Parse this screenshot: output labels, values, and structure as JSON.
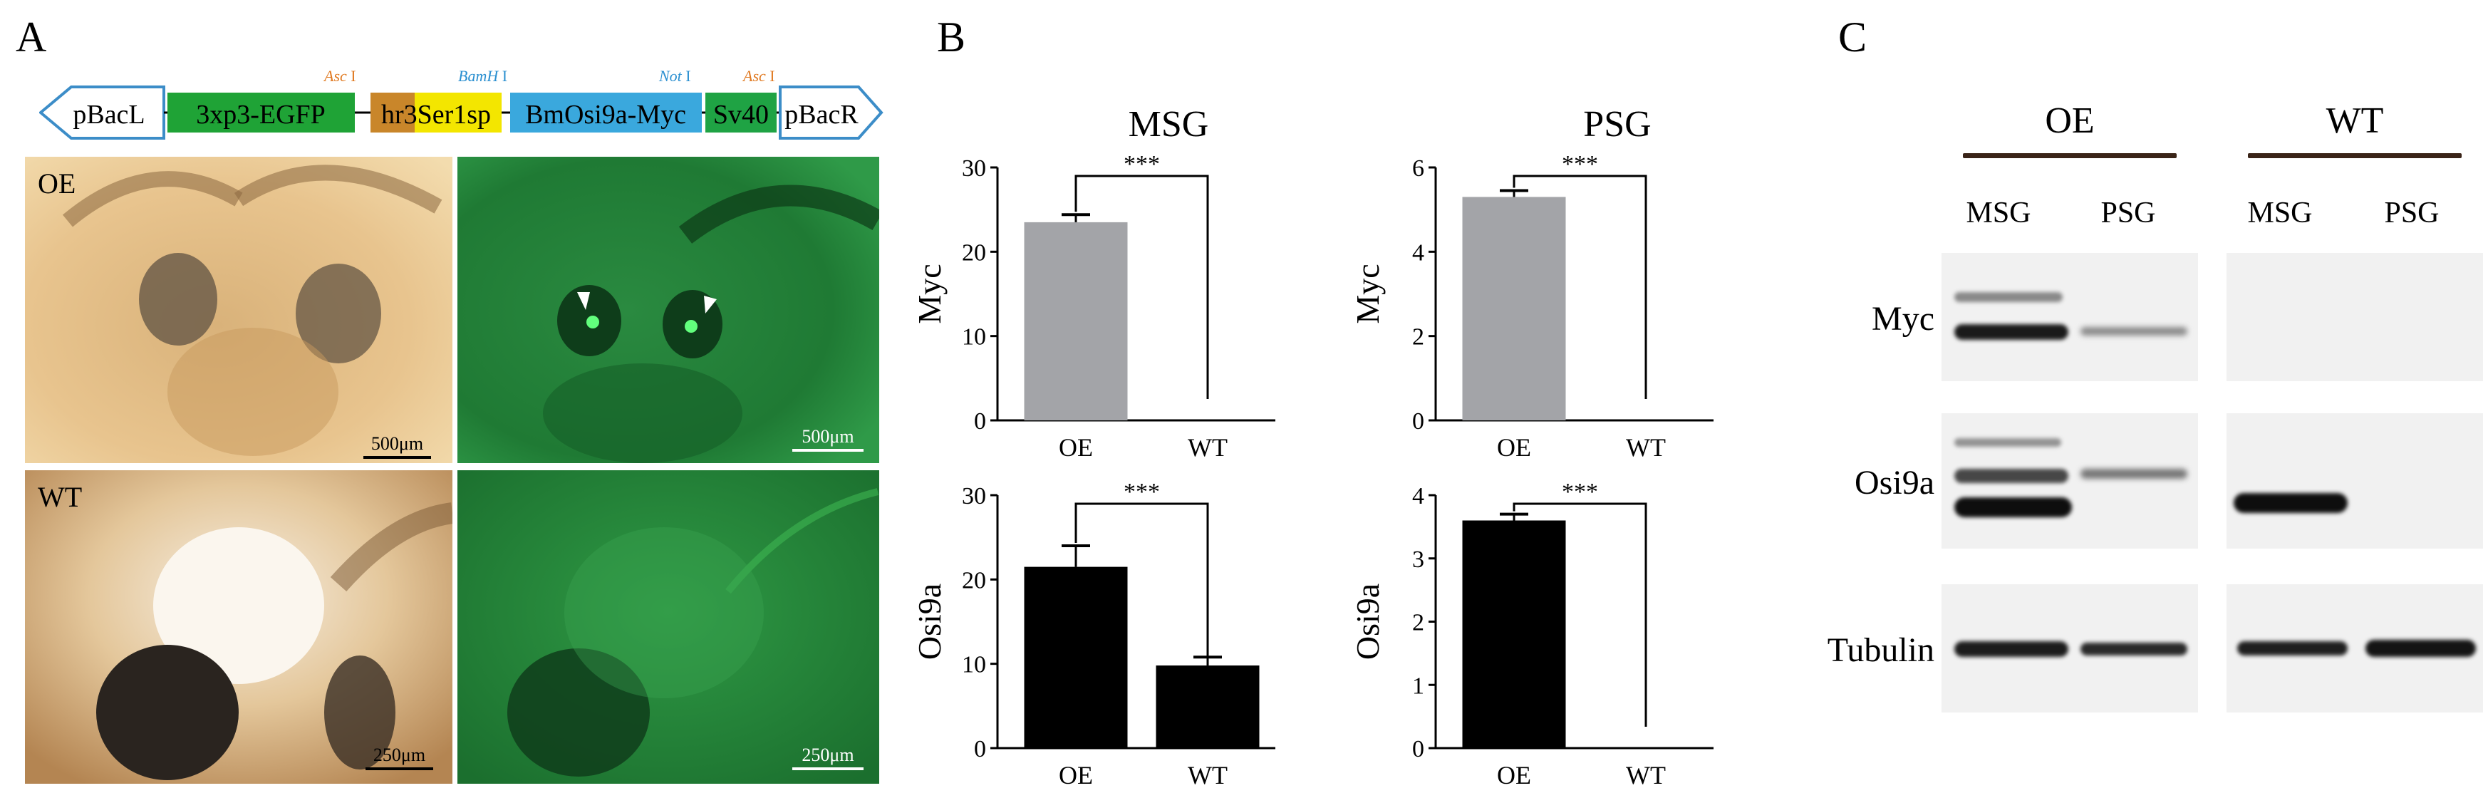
{
  "panels": {
    "a": "A",
    "b": "B",
    "c": "C"
  },
  "construct": {
    "segments": [
      "pBacL",
      "3xp3-EGFP",
      "hr3Ser1sp",
      "BmOsi9a-Myc",
      "Sv40",
      "pBacR"
    ],
    "sites": [
      {
        "enzyme": "Asc",
        "num": "I"
      },
      {
        "enzyme": "BamH",
        "num": "I"
      },
      {
        "enzyme": "Not",
        "num": "I"
      },
      {
        "enzyme": "Asc",
        "num": "I"
      }
    ],
    "colors": {
      "pBacL": "#ffffff",
      "egfp": "#1fa336",
      "hr3": "#c9862a",
      "ser1": "#f3e600",
      "osi": "#3aa8dd",
      "sv40": "#1fa344",
      "arrowStroke": "#3c8dc8",
      "enzymeOrange": "#e07a22",
      "enzymeBlue": "#2a8fd0"
    }
  },
  "photos": {
    "oe_label": "OE",
    "wt_label": "WT",
    "scale_500": "500μm",
    "scale_250": "250μm"
  },
  "chart_data": [
    {
      "type": "bar",
      "title": "MSG",
      "ylabel": "Myc",
      "categories": [
        "OE",
        "WT"
      ],
      "values": [
        23.5,
        0
      ],
      "errors": [
        0.9,
        0
      ],
      "ylim": [
        0,
        30
      ],
      "yticks": [
        0,
        10,
        20,
        30
      ],
      "color": "#a3a4a8",
      "significance": "***"
    },
    {
      "type": "bar",
      "title": "PSG",
      "ylabel": "Myc",
      "categories": [
        "OE",
        "WT"
      ],
      "values": [
        5.3,
        0
      ],
      "errors": [
        0.15,
        0
      ],
      "ylim": [
        0,
        6
      ],
      "yticks": [
        0,
        2,
        4,
        6
      ],
      "color": "#a3a4a8",
      "significance": "***"
    },
    {
      "type": "bar",
      "title": "",
      "ylabel": "Osi9a",
      "categories": [
        "OE",
        "WT"
      ],
      "values": [
        21.5,
        9.8
      ],
      "errors": [
        2.5,
        1.0
      ],
      "ylim": [
        0,
        30
      ],
      "yticks": [
        0,
        10,
        20,
        30
      ],
      "color": "#000000",
      "significance": "***"
    },
    {
      "type": "bar",
      "title": "",
      "ylabel": "Osi9a",
      "categories": [
        "OE",
        "WT"
      ],
      "values": [
        3.6,
        0
      ],
      "errors": [
        0.1,
        0
      ],
      "ylim": [
        0,
        4
      ],
      "yticks": [
        0,
        1,
        2,
        3,
        4
      ],
      "color": "#000000",
      "significance": "***"
    }
  ],
  "western": {
    "groups": [
      "OE",
      "WT"
    ],
    "columns": [
      "MSG",
      "PSG",
      "MSG",
      "PSG"
    ],
    "rows": [
      "Myc",
      "Osi9a",
      "Tubulin"
    ]
  }
}
